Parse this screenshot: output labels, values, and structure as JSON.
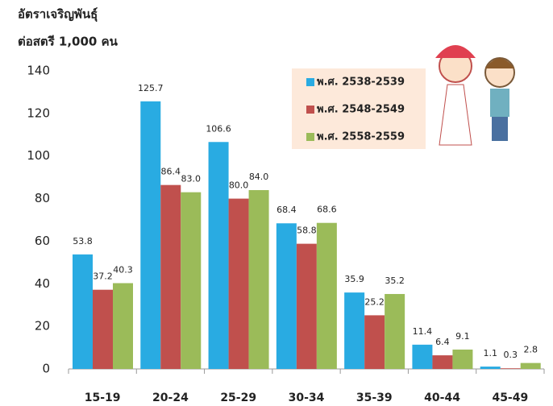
{
  "chart_data": {
    "type": "bar",
    "title": "อัตราเจริญพันธุ์",
    "subtitle": "ต่อสตรี 1,000 คน",
    "categories": [
      "15-19",
      "20-24",
      "25-29",
      "30-34",
      "35-39",
      "40-44",
      "45-49"
    ],
    "series": [
      {
        "name": "พ.ศ. 2538-2539",
        "color": "#29abe2",
        "values": [
          53.8,
          125.7,
          106.6,
          68.4,
          35.9,
          11.4,
          1.1
        ],
        "value_labels": [
          "53.8",
          "125.7",
          "106.6",
          "68.4",
          "35.9",
          "11.4",
          "1.1"
        ]
      },
      {
        "name": "พ.ศ. 2548-2549",
        "color": "#c0504d",
        "values": [
          37.2,
          86.4,
          80.0,
          58.8,
          25.2,
          6.4,
          0.3
        ],
        "value_labels": [
          "37.2",
          "86.4",
          "80.0",
          "58.8",
          "25.2",
          "6.4",
          "0.3"
        ]
      },
      {
        "name": "พ.ศ. 2558-2559",
        "color": "#9bbb59",
        "values": [
          40.3,
          83.0,
          84.0,
          68.6,
          35.2,
          9.1,
          2.8
        ],
        "value_labels": [
          "40.3",
          "83.0",
          "84.0",
          "68.6",
          "35.2",
          "9.1",
          "2.8"
        ]
      }
    ],
    "ylim": [
      0,
      140
    ],
    "yticks": [
      0,
      20,
      40,
      60,
      80,
      100,
      120,
      140
    ],
    "legend": "top-right"
  }
}
